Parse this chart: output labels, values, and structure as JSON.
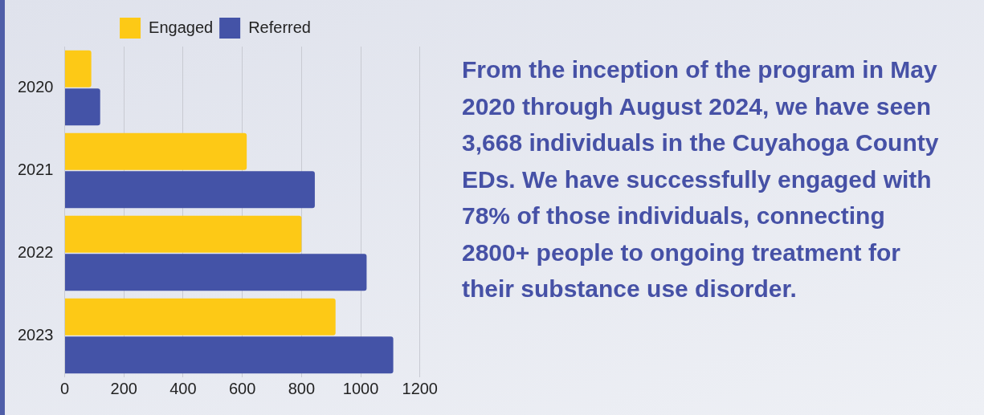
{
  "chart_data": {
    "type": "bar",
    "orientation": "horizontal",
    "categories": [
      "2020",
      "2021",
      "2022",
      "2023"
    ],
    "series": [
      {
        "name": "Engaged",
        "color": "#fdc916",
        "values": [
          90,
          615,
          800,
          915
        ]
      },
      {
        "name": "Referred",
        "color": "#4453a7",
        "values": [
          120,
          845,
          1020,
          1110
        ]
      }
    ],
    "xlim": [
      0,
      1200
    ],
    "xticks": [
      0,
      200,
      400,
      600,
      800,
      1000,
      1200
    ],
    "grid": "x",
    "legend": "top",
    "annotations": [
      "From the inception of the program in May 2020 through August 2024, we have seen 3,668 individuals in the Cuyahoga County EDs. We have successfully engaged with 78% of those individuals, connecting 2800+ people to ongoing treatment for their substance use disorder."
    ]
  }
}
